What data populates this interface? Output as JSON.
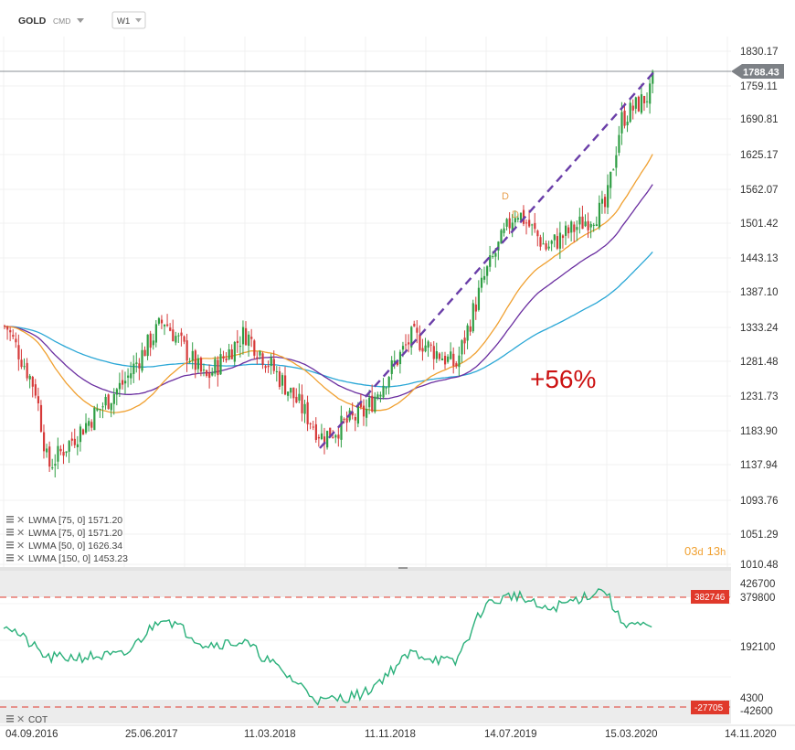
{
  "header": {
    "symbol": "GOLD",
    "source": "CMD",
    "timeframe": "W1"
  },
  "price_axis_labels": [
    "1830.17",
    "1759.11",
    "1690.81",
    "1625.17",
    "1562.07",
    "1501.42",
    "1443.13",
    "1387.10",
    "1333.24",
    "1281.48",
    "1231.73",
    "1183.90",
    "1137.94",
    "1093.76",
    "1051.29",
    "1010.48"
  ],
  "current_price_label": "1788.43",
  "annotation_gain": "+56%",
  "countdown": {
    "days": "03",
    "d": "d",
    "hours": "13",
    "h": "h"
  },
  "legend": [
    {
      "text": "LWMA [75,  0]  1571.20",
      "color": "#2aa7d6"
    },
    {
      "text": "LWMA [75,  0]  1571.20",
      "color": "#6a2ea0"
    },
    {
      "text": "LWMA [50,  0]  1626.34",
      "color": "#f0a030"
    },
    {
      "text": "LWMA [150,  0]  1453.23",
      "color": "#2aa7d6"
    }
  ],
  "date_labels": [
    "04.09.2016",
    "25.06.2017",
    "11.03.2018",
    "11.11.2018",
    "14.07.2019",
    "15.03.2020",
    "14.11.2020"
  ],
  "cot": {
    "label": "COT",
    "axis_labels": [
      "426700",
      "379800",
      "192100",
      "4300",
      "-42600"
    ],
    "upper_level_label": "382746",
    "lower_level_label": "-27705",
    "color": "#2ab07a"
  },
  "chart_data": [
    {
      "type": "candlestick",
      "title": "GOLD",
      "x_start": "04.09.2016",
      "x_end": "14.11.2020",
      "ylim": [
        1010.48,
        1830.17
      ],
      "current_price": 1788.43,
      "price_path_weekly_close_approx": [
        {
          "date": "04.09.2016",
          "close": 1335
        },
        {
          "date": "2016-11",
          "close": 1240
        },
        {
          "date": "2016-12",
          "close": 1135
        },
        {
          "date": "25.06.2017",
          "close": 1255
        },
        {
          "date": "2017-09",
          "close": 1345
        },
        {
          "date": "2017-12",
          "close": 1255
        },
        {
          "date": "11.03.2018",
          "close": 1325
        },
        {
          "date": "2018-08",
          "close": 1175
        },
        {
          "date": "11.11.2018",
          "close": 1210
        },
        {
          "date": "2019-02",
          "close": 1320
        },
        {
          "date": "2019-05",
          "close": 1275
        },
        {
          "date": "14.07.2019",
          "close": 1415
        },
        {
          "date": "2019-09",
          "close": 1525
        },
        {
          "date": "2019-11",
          "close": 1460
        },
        {
          "date": "15.03.2020",
          "close": 1530
        },
        {
          "date": "2020-04",
          "close": 1690
        },
        {
          "date": "2020-06",
          "close": 1745
        },
        {
          "date": "2020-07",
          "close": 1788
        }
      ],
      "series": [
        {
          "name": "LWMA [75, 0]",
          "last_value": 1571.2,
          "color": "#6a2ea0"
        },
        {
          "name": "LWMA [50, 0]",
          "last_value": 1626.34,
          "color": "#f0a030"
        },
        {
          "name": "LWMA [150, 0]",
          "last_value": 1453.23,
          "color": "#2aa7d6"
        }
      ],
      "annotations": [
        {
          "type": "trendline",
          "from": {
            "date": "2018-08",
            "price": 1160
          },
          "to": {
            "date": "2020-07",
            "price": 1795
          },
          "style": "dashed",
          "color": "#6a3ea8"
        },
        {
          "type": "text",
          "text": "+56%",
          "color": "#cc1111"
        }
      ]
    },
    {
      "type": "line",
      "title": "COT",
      "ylim": [
        -42600,
        426700
      ],
      "levels": [
        382746,
        -27705
      ],
      "approx_values": [
        {
          "date": "04.09.2016",
          "value": 280000
        },
        {
          "date": "2016-12",
          "value": 150000
        },
        {
          "date": "25.06.2017",
          "value": 160000
        },
        {
          "date": "2017-09",
          "value": 310000
        },
        {
          "date": "2017-12",
          "value": 200000
        },
        {
          "date": "11.03.2018",
          "value": 210000
        },
        {
          "date": "2018-08",
          "value": -10000
        },
        {
          "date": "11.11.2018",
          "value": 20000
        },
        {
          "date": "2019-02",
          "value": 170000
        },
        {
          "date": "2019-05",
          "value": 130000
        },
        {
          "date": "14.07.2019",
          "value": 350000
        },
        {
          "date": "2019-09",
          "value": 390000
        },
        {
          "date": "2019-11",
          "value": 330000
        },
        {
          "date": "15.03.2020",
          "value": 410000
        },
        {
          "date": "2020-04",
          "value": 290000
        },
        {
          "date": "2020-06",
          "value": 260000
        },
        {
          "date": "2020-07",
          "value": 300000
        }
      ]
    }
  ]
}
